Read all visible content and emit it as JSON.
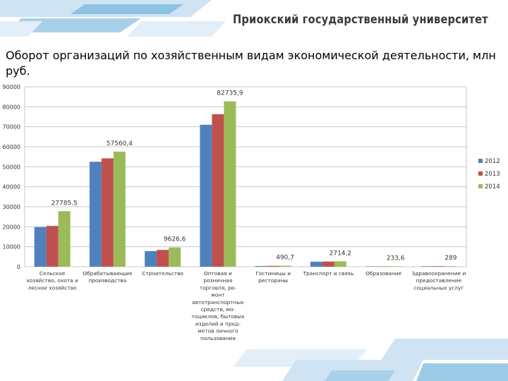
{
  "header": {
    "university": "Приокский государственный университет"
  },
  "slide": {
    "title": "Оборот организаций по хозяйственным видам экономической деятельности, млн руб."
  },
  "colors": {
    "series_2012": "#4f81bd",
    "series_2013": "#c0504d",
    "series_2014": "#9bbb59",
    "decor_light": "#cfe3f2",
    "decor_mid": "#5aa9d6"
  },
  "chart_data": {
    "type": "bar",
    "title": "",
    "xlabel": "",
    "ylabel": "",
    "ylim": [
      0,
      90000
    ],
    "yticks": [
      "0",
      "10000",
      "20000",
      "30000",
      "40000",
      "50000",
      "60000",
      "70000",
      "80000",
      "90000"
    ],
    "categories": [
      "Сельское хозяйство, охота и лесное хозяйство",
      "Обрабатывающие производства",
      "Строительство",
      "Оптовая и розничная торговля, ре-монт автотранспортных средств, мо-тоциклов, бытовых изделий и пред-метов личного пользования",
      "Гостиницы и рестораны",
      "Транспорт и связь",
      "Образование",
      "Здравоохранение и предоставление социальных услуг"
    ],
    "category_label_lines": [
      [
        "Сельское",
        "хозяйство, охота и",
        "лесное хозяйство"
      ],
      [
        "Обрабатывающие",
        "производства"
      ],
      [
        "Строительство"
      ],
      [
        "Оптовая и",
        "розничная",
        "торговля, ре-",
        "монт",
        "автотранспортных",
        "средств, мо-",
        "тоциклов, бытовых",
        "изделий и пред-",
        "метов личного",
        "пользования"
      ],
      [
        "Гостиницы и",
        "рестораны"
      ],
      [
        "Транспорт и связь"
      ],
      [
        "Образование"
      ],
      [
        "Здравоохранение и",
        "предоставление",
        "социальных услуг"
      ]
    ],
    "series": [
      {
        "name": "2012",
        "values": [
          19800,
          52500,
          7800,
          71000,
          350,
          2500,
          170,
          230
        ]
      },
      {
        "name": "2013",
        "values": [
          20400,
          54200,
          8400,
          76300,
          420,
          2600,
          200,
          260
        ]
      },
      {
        "name": "2014",
        "values": [
          27785.5,
          57560.4,
          9626.6,
          82735.9,
          490.7,
          2714.2,
          233.6,
          289
        ]
      }
    ],
    "data_labels": [
      "27785.5",
      "57560,4",
      "9626,6",
      "82735,9",
      "490,7",
      "2714,2",
      "233,6",
      "289"
    ],
    "legend": {
      "position": "right",
      "entries": [
        "2012",
        "2013",
        "2014"
      ]
    },
    "grid": true
  }
}
